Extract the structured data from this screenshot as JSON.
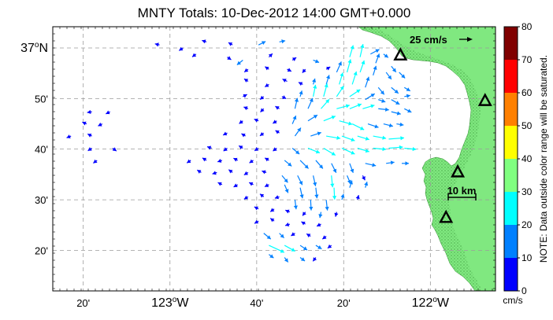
{
  "map": {
    "title": "MNTY Totals: 10-Dec-2012 14:00 GMT+0.000",
    "lon_labels": [
      {
        "lon": -123.333,
        "text": "20'",
        "major": false
      },
      {
        "lon": -123.0,
        "text": "123°W",
        "major": true
      },
      {
        "lon": -122.667,
        "text": "40'",
        "major": false
      },
      {
        "lon": -122.333,
        "text": "20'",
        "major": false
      },
      {
        "lon": -122.0,
        "text": "122°W",
        "major": true
      }
    ],
    "lat_labels": [
      {
        "lat": 37.0,
        "text": "37°N",
        "major": true
      },
      {
        "lat": 36.833,
        "text": "50'",
        "major": false
      },
      {
        "lat": 36.667,
        "text": "40'",
        "major": false
      },
      {
        "lat": 36.5,
        "text": "30'",
        "major": false
      },
      {
        "lat": 36.333,
        "text": "20'",
        "major": false
      }
    ],
    "lon_range": [
      -123.45,
      -121.75
    ],
    "lat_range": [
      36.2,
      37.07
    ],
    "land_color": "#80e880",
    "reference_vector": {
      "label": "25 cm/s",
      "speed": 25
    },
    "scale_bar": {
      "label": "10 km"
    },
    "sites": [
      {
        "lon": -122.115,
        "lat": 36.975
      },
      {
        "lon": -121.79,
        "lat": 36.825
      },
      {
        "lon": -121.895,
        "lat": 36.59
      },
      {
        "lon": -121.94,
        "lat": 36.44
      }
    ],
    "vectors": [
      {
        "lon": -123.04,
        "lat": 37.01,
        "u": -4,
        "v": 1
      },
      {
        "lon": -122.95,
        "lat": 37.0,
        "u": -3,
        "v": -2
      },
      {
        "lon": -122.86,
        "lat": 37.02,
        "u": -3,
        "v": 1
      },
      {
        "lon": -122.76,
        "lat": 37.01,
        "u": -5,
        "v": 3
      },
      {
        "lon": -122.66,
        "lat": 37.01,
        "u": 12,
        "v": 6
      },
      {
        "lon": -122.58,
        "lat": 37.02,
        "u": 10,
        "v": 2
      },
      {
        "lon": -122.18,
        "lat": 36.98,
        "u": 8,
        "v": -6
      },
      {
        "lon": -122.23,
        "lat": 36.98,
        "u": 15,
        "v": 8
      },
      {
        "lon": -122.9,
        "lat": 36.98,
        "u": -4,
        "v": -3
      },
      {
        "lon": -122.78,
        "lat": 36.97,
        "u": 3,
        "v": -2
      },
      {
        "lon": -122.72,
        "lat": 36.96,
        "u": -10,
        "v": -8
      },
      {
        "lon": -122.62,
        "lat": 36.97,
        "u": 6,
        "v": 6
      },
      {
        "lon": -122.53,
        "lat": 36.96,
        "u": 3,
        "v": 2
      },
      {
        "lon": -122.45,
        "lat": 36.96,
        "u": 10,
        "v": -4
      },
      {
        "lon": -122.31,
        "lat": 36.97,
        "u": 6,
        "v": 20
      },
      {
        "lon": -122.27,
        "lat": 36.97,
        "u": 5,
        "v": 22
      },
      {
        "lon": -122.21,
        "lat": 36.95,
        "u": 6,
        "v": 16
      },
      {
        "lon": -122.15,
        "lat": 36.94,
        "u": 8,
        "v": -10
      },
      {
        "lon": -122.7,
        "lat": 36.93,
        "u": -4,
        "v": -3
      },
      {
        "lon": -122.62,
        "lat": 36.93,
        "u": -3,
        "v": 2
      },
      {
        "lon": -122.55,
        "lat": 36.93,
        "u": 4,
        "v": -2
      },
      {
        "lon": -122.48,
        "lat": 36.93,
        "u": -5,
        "v": -6
      },
      {
        "lon": -122.4,
        "lat": 36.93,
        "u": 5,
        "v": 3
      },
      {
        "lon": -122.36,
        "lat": 36.92,
        "u": 8,
        "v": 18
      },
      {
        "lon": -122.32,
        "lat": 36.92,
        "u": 6,
        "v": 22
      },
      {
        "lon": -122.27,
        "lat": 36.92,
        "u": 7,
        "v": 20
      },
      {
        "lon": -122.22,
        "lat": 36.91,
        "u": 5,
        "v": 16
      },
      {
        "lon": -122.17,
        "lat": 36.92,
        "u": 9,
        "v": -12
      },
      {
        "lon": -122.12,
        "lat": 36.92,
        "u": 10,
        "v": -10
      },
      {
        "lon": -122.7,
        "lat": 36.89,
        "u": -6,
        "v": 4
      },
      {
        "lon": -122.62,
        "lat": 36.88,
        "u": -5,
        "v": -3
      },
      {
        "lon": -122.55,
        "lat": 36.89,
        "u": -8,
        "v": 4
      },
      {
        "lon": -122.49,
        "lat": 36.88,
        "u": -4,
        "v": 2
      },
      {
        "lon": -122.45,
        "lat": 36.88,
        "u": 3,
        "v": 10
      },
      {
        "lon": -122.4,
        "lat": 36.88,
        "u": 5,
        "v": 16
      },
      {
        "lon": -122.35,
        "lat": 36.88,
        "u": 6,
        "v": 20
      },
      {
        "lon": -122.3,
        "lat": 36.88,
        "u": 7,
        "v": 22
      },
      {
        "lon": -122.25,
        "lat": 36.87,
        "u": 6,
        "v": 18
      },
      {
        "lon": -122.2,
        "lat": 36.87,
        "u": 10,
        "v": -12
      },
      {
        "lon": -122.15,
        "lat": 36.87,
        "u": 12,
        "v": -10
      },
      {
        "lon": -122.1,
        "lat": 36.87,
        "u": 10,
        "v": -6
      },
      {
        "lon": -122.72,
        "lat": 36.84,
        "u": 6,
        "v": 3
      },
      {
        "lon": -122.64,
        "lat": 36.84,
        "u": -5,
        "v": -4
      },
      {
        "lon": -122.57,
        "lat": 36.84,
        "u": 6,
        "v": -3
      },
      {
        "lon": -122.5,
        "lat": 36.84,
        "u": 3,
        "v": 10
      },
      {
        "lon": -122.45,
        "lat": 36.84,
        "u": 4,
        "v": 20
      },
      {
        "lon": -122.41,
        "lat": 36.84,
        "u": 6,
        "v": 22
      },
      {
        "lon": -122.36,
        "lat": 36.84,
        "u": 12,
        "v": 18
      },
      {
        "lon": -122.31,
        "lat": 36.84,
        "u": 18,
        "v": 12
      },
      {
        "lon": -122.25,
        "lat": 36.83,
        "u": 16,
        "v": 10
      },
      {
        "lon": -122.2,
        "lat": 36.83,
        "u": 12,
        "v": -4
      },
      {
        "lon": -122.15,
        "lat": 36.83,
        "u": 14,
        "v": -8
      },
      {
        "lon": -122.1,
        "lat": 36.84,
        "u": 10,
        "v": 2
      },
      {
        "lon": -123.3,
        "lat": 36.79,
        "u": -6,
        "v": -1
      },
      {
        "lon": -123.23,
        "lat": 36.79,
        "u": -6,
        "v": -3
      },
      {
        "lon": -122.7,
        "lat": 36.8,
        "u": -5,
        "v": 2
      },
      {
        "lon": -122.64,
        "lat": 36.8,
        "u": -4,
        "v": -4
      },
      {
        "lon": -122.58,
        "lat": 36.8,
        "u": -5,
        "v": 3
      },
      {
        "lon": -122.52,
        "lat": 36.8,
        "u": 4,
        "v": 18
      },
      {
        "lon": -122.47,
        "lat": 36.8,
        "u": 8,
        "v": 18
      },
      {
        "lon": -122.42,
        "lat": 36.8,
        "u": 14,
        "v": 16
      },
      {
        "lon": -122.36,
        "lat": 36.8,
        "u": 22,
        "v": 6
      },
      {
        "lon": -122.31,
        "lat": 36.8,
        "u": 20,
        "v": 8
      },
      {
        "lon": -122.26,
        "lat": 36.8,
        "u": 20,
        "v": 6
      },
      {
        "lon": -122.2,
        "lat": 36.8,
        "u": 18,
        "v": -2
      },
      {
        "lon": -122.15,
        "lat": 36.79,
        "u": 16,
        "v": -4
      },
      {
        "lon": -122.1,
        "lat": 36.8,
        "u": 12,
        "v": -6
      },
      {
        "lon": -123.32,
        "lat": 36.75,
        "u": -5,
        "v": 2
      },
      {
        "lon": -123.26,
        "lat": 36.75,
        "u": -6,
        "v": -3
      },
      {
        "lon": -122.72,
        "lat": 36.76,
        "u": -4,
        "v": -3
      },
      {
        "lon": -122.66,
        "lat": 36.76,
        "u": -5,
        "v": 2
      },
      {
        "lon": -122.59,
        "lat": 36.76,
        "u": -3,
        "v": -2
      },
      {
        "lon": -122.53,
        "lat": 36.75,
        "u": 6,
        "v": 14
      },
      {
        "lon": -122.47,
        "lat": 36.76,
        "u": 16,
        "v": 10
      },
      {
        "lon": -122.41,
        "lat": 36.76,
        "u": 20,
        "v": 8
      },
      {
        "lon": -122.35,
        "lat": 36.76,
        "u": 22,
        "v": -6
      },
      {
        "lon": -122.3,
        "lat": 36.75,
        "u": 20,
        "v": -10
      },
      {
        "lon": -122.24,
        "lat": 36.75,
        "u": 18,
        "v": -6
      },
      {
        "lon": -122.18,
        "lat": 36.75,
        "u": 16,
        "v": -4
      },
      {
        "lon": -122.13,
        "lat": 36.75,
        "u": 12,
        "v": -2
      },
      {
        "lon": -123.38,
        "lat": 36.71,
        "u": -5,
        "v": -2
      },
      {
        "lon": -123.3,
        "lat": 36.71,
        "u": -6,
        "v": 3
      },
      {
        "lon": -122.78,
        "lat": 36.72,
        "u": -4,
        "v": -2
      },
      {
        "lon": -122.71,
        "lat": 36.71,
        "u": -5,
        "v": 3
      },
      {
        "lon": -122.64,
        "lat": 36.72,
        "u": -4,
        "v": -3
      },
      {
        "lon": -122.58,
        "lat": 36.72,
        "u": -3,
        "v": 2
      },
      {
        "lon": -122.52,
        "lat": 36.71,
        "u": 10,
        "v": 14
      },
      {
        "lon": -122.46,
        "lat": 36.71,
        "u": 18,
        "v": 6
      },
      {
        "lon": -122.4,
        "lat": 36.71,
        "u": 24,
        "v": -4
      },
      {
        "lon": -122.34,
        "lat": 36.71,
        "u": 22,
        "v": -8
      },
      {
        "lon": -122.28,
        "lat": 36.71,
        "u": 20,
        "v": -6
      },
      {
        "lon": -122.22,
        "lat": 36.71,
        "u": 22,
        "v": -4
      },
      {
        "lon": -122.16,
        "lat": 36.7,
        "u": 26,
        "v": 2
      },
      {
        "lon": -123.3,
        "lat": 36.67,
        "u": -6,
        "v": -4
      },
      {
        "lon": -123.22,
        "lat": 36.67,
        "u": 4,
        "v": -3
      },
      {
        "lon": -122.84,
        "lat": 36.67,
        "u": -6,
        "v": 2
      },
      {
        "lon": -122.78,
        "lat": 36.67,
        "u": -4,
        "v": -3
      },
      {
        "lon": -122.72,
        "lat": 36.67,
        "u": -5,
        "v": 3
      },
      {
        "lon": -122.66,
        "lat": 36.67,
        "u": -3,
        "v": -2
      },
      {
        "lon": -122.59,
        "lat": 36.67,
        "u": -4,
        "v": -3
      },
      {
        "lon": -122.53,
        "lat": 36.67,
        "u": 12,
        "v": -10
      },
      {
        "lon": -122.47,
        "lat": 36.67,
        "u": 20,
        "v": -8
      },
      {
        "lon": -122.41,
        "lat": 36.67,
        "u": 20,
        "v": -12
      },
      {
        "lon": -122.34,
        "lat": 36.67,
        "u": 22,
        "v": -10
      },
      {
        "lon": -122.28,
        "lat": 36.67,
        "u": 20,
        "v": -6
      },
      {
        "lon": -122.22,
        "lat": 36.67,
        "u": 22,
        "v": -2
      },
      {
        "lon": -122.16,
        "lat": 36.67,
        "u": 24,
        "v": 2
      },
      {
        "lon": -122.1,
        "lat": 36.67,
        "u": 20,
        "v": -2
      },
      {
        "lon": -122.92,
        "lat": 36.63,
        "u": -6,
        "v": -4
      },
      {
        "lon": -122.86,
        "lat": 36.63,
        "u": -5,
        "v": 3
      },
      {
        "lon": -122.8,
        "lat": 36.63,
        "u": -6,
        "v": -2
      },
      {
        "lon": -122.74,
        "lat": 36.63,
        "u": -4,
        "v": 2
      },
      {
        "lon": -122.68,
        "lat": 36.63,
        "u": -6,
        "v": -4
      },
      {
        "lon": -122.62,
        "lat": 36.63,
        "u": -5,
        "v": 3
      },
      {
        "lon": -122.56,
        "lat": 36.63,
        "u": 12,
        "v": -10
      },
      {
        "lon": -122.5,
        "lat": 36.63,
        "u": 14,
        "v": -14
      },
      {
        "lon": -122.44,
        "lat": 36.63,
        "u": 12,
        "v": -14
      },
      {
        "lon": -122.38,
        "lat": 36.62,
        "u": 8,
        "v": -16
      },
      {
        "lon": -122.31,
        "lat": 36.62,
        "u": 6,
        "v": -16
      },
      {
        "lon": -122.25,
        "lat": 36.62,
        "u": 18,
        "v": -4
      },
      {
        "lon": -122.17,
        "lat": 36.62,
        "u": 14,
        "v": 2
      },
      {
        "lon": -122.11,
        "lat": 36.62,
        "u": 12,
        "v": 0
      },
      {
        "lon": -123.28,
        "lat": 36.63,
        "u": -4,
        "v": -3
      },
      {
        "lon": -122.88,
        "lat": 36.59,
        "u": -5,
        "v": 3
      },
      {
        "lon": -122.82,
        "lat": 36.59,
        "u": -6,
        "v": -2
      },
      {
        "lon": -122.76,
        "lat": 36.59,
        "u": -4,
        "v": 3
      },
      {
        "lon": -122.7,
        "lat": 36.59,
        "u": -5,
        "v": -3
      },
      {
        "lon": -122.63,
        "lat": 36.59,
        "u": -6,
        "v": 2
      },
      {
        "lon": -122.57,
        "lat": 36.58,
        "u": 10,
        "v": -12
      },
      {
        "lon": -122.51,
        "lat": 36.58,
        "u": 8,
        "v": -16
      },
      {
        "lon": -122.45,
        "lat": 36.58,
        "u": 4,
        "v": -18
      },
      {
        "lon": -122.38,
        "lat": 36.58,
        "u": 2,
        "v": -20
      },
      {
        "lon": -122.32,
        "lat": 36.58,
        "u": 6,
        "v": -14
      },
      {
        "lon": -122.26,
        "lat": 36.58,
        "u": 4,
        "v": -8
      },
      {
        "lon": -122.8,
        "lat": 36.55,
        "u": -4,
        "v": 2
      },
      {
        "lon": -122.74,
        "lat": 36.55,
        "u": -5,
        "v": -3
      },
      {
        "lon": -122.68,
        "lat": 36.55,
        "u": -6,
        "v": 3
      },
      {
        "lon": -122.62,
        "lat": 36.55,
        "u": -4,
        "v": -2
      },
      {
        "lon": -122.56,
        "lat": 36.55,
        "u": 6,
        "v": -14
      },
      {
        "lon": -122.5,
        "lat": 36.54,
        "u": 4,
        "v": -18
      },
      {
        "lon": -122.44,
        "lat": 36.54,
        "u": 2,
        "v": -18
      },
      {
        "lon": -122.37,
        "lat": 36.54,
        "u": 1,
        "v": -20
      },
      {
        "lon": -122.31,
        "lat": 36.54,
        "u": 4,
        "v": 12
      },
      {
        "lon": -122.25,
        "lat": 36.54,
        "u": 3,
        "v": 10
      },
      {
        "lon": -122.7,
        "lat": 36.51,
        "u": -5,
        "v": -3
      },
      {
        "lon": -122.64,
        "lat": 36.51,
        "u": -4,
        "v": 3
      },
      {
        "lon": -122.58,
        "lat": 36.51,
        "u": -6,
        "v": -2
      },
      {
        "lon": -122.52,
        "lat": 36.5,
        "u": 2,
        "v": -16
      },
      {
        "lon": -122.46,
        "lat": 36.5,
        "u": 1,
        "v": -18
      },
      {
        "lon": -122.4,
        "lat": 36.5,
        "u": 2,
        "v": -18
      },
      {
        "lon": -122.34,
        "lat": 36.5,
        "u": 3,
        "v": 10
      },
      {
        "lon": -122.28,
        "lat": 36.5,
        "u": 2,
        "v": 8
      },
      {
        "lon": -122.66,
        "lat": 36.47,
        "u": -6,
        "v": 3
      },
      {
        "lon": -122.6,
        "lat": 36.47,
        "u": -4,
        "v": -3
      },
      {
        "lon": -122.54,
        "lat": 36.46,
        "u": -5,
        "v": 2
      },
      {
        "lon": -122.48,
        "lat": 36.46,
        "u": -3,
        "v": -4
      },
      {
        "lon": -122.42,
        "lat": 36.46,
        "u": -2,
        "v": -10
      },
      {
        "lon": -122.36,
        "lat": 36.46,
        "u": -2,
        "v": -8
      },
      {
        "lon": -122.66,
        "lat": 36.43,
        "u": -5,
        "v": -3
      },
      {
        "lon": -122.6,
        "lat": 36.43,
        "u": -4,
        "v": 3
      },
      {
        "lon": -122.54,
        "lat": 36.42,
        "u": -6,
        "v": -2
      },
      {
        "lon": -122.48,
        "lat": 36.42,
        "u": -5,
        "v": 3
      },
      {
        "lon": -122.42,
        "lat": 36.42,
        "u": -4,
        "v": -2
      },
      {
        "lon": -122.64,
        "lat": 36.39,
        "u": 12,
        "v": -10
      },
      {
        "lon": -122.58,
        "lat": 36.39,
        "u": 8,
        "v": -8
      },
      {
        "lon": -122.52,
        "lat": 36.39,
        "u": -6,
        "v": -4
      },
      {
        "lon": -122.46,
        "lat": 36.38,
        "u": -5,
        "v": 3
      },
      {
        "lon": -122.4,
        "lat": 36.38,
        "u": -4,
        "v": -3
      },
      {
        "lon": -122.62,
        "lat": 36.35,
        "u": 26,
        "v": -12
      },
      {
        "lon": -122.56,
        "lat": 36.35,
        "u": 18,
        "v": -10
      },
      {
        "lon": -122.5,
        "lat": 36.35,
        "u": 12,
        "v": -8
      },
      {
        "lon": -122.44,
        "lat": 36.35,
        "u": 10,
        "v": -6
      },
      {
        "lon": -122.38,
        "lat": 36.35,
        "u": -4,
        "v": -3
      },
      {
        "lon": -122.62,
        "lat": 36.32,
        "u": 8,
        "v": -6
      },
      {
        "lon": -122.56,
        "lat": 36.31,
        "u": 6,
        "v": -8
      },
      {
        "lon": -122.5,
        "lat": 36.31,
        "u": 8,
        "v": -6
      },
      {
        "lon": -122.44,
        "lat": 36.31,
        "u": -3,
        "v": -4
      }
    ]
  },
  "colorbar": {
    "ticks": [
      "0",
      "10",
      "20",
      "30",
      "40",
      "50",
      "60",
      "70",
      "80"
    ],
    "colors": [
      "#0000ff",
      "#0080ff",
      "#00ffff",
      "#80ff80",
      "#ffff00",
      "#ff8000",
      "#ff0000",
      "#800000"
    ],
    "units": "cm/s",
    "note": "NOTE: Data outside color range will be saturated."
  }
}
